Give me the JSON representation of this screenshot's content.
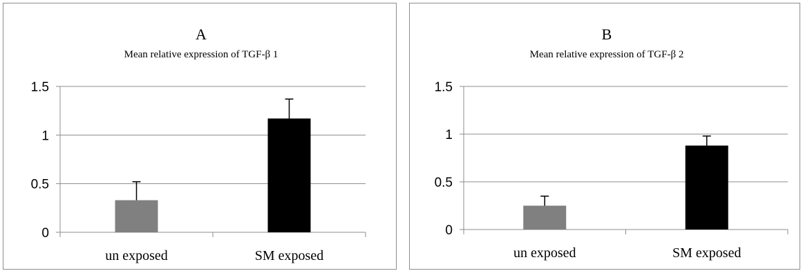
{
  "chart_data": [
    {
      "type": "bar",
      "title": "A",
      "subtitle": "Mean relative expression of TGF-β 1",
      "categories": [
        "un exposed",
        "SM exposed"
      ],
      "values": [
        0.33,
        1.17
      ],
      "errors": [
        0.19,
        0.2
      ],
      "colors": [
        "#808080",
        "#000000"
      ],
      "yticks": [
        "0",
        "0.5",
        "1",
        "1.5"
      ],
      "ylim": [
        0,
        1.5
      ],
      "grid": true,
      "legend": "none"
    },
    {
      "type": "bar",
      "title": "B",
      "subtitle": "Mean relative expression of TGF-β 2",
      "categories": [
        "un exposed",
        "SM exposed"
      ],
      "values": [
        0.25,
        0.88
      ],
      "errors": [
        0.1,
        0.1
      ],
      "colors": [
        "#808080",
        "#000000"
      ],
      "yticks": [
        "0",
        "0.5",
        "1",
        "1.5"
      ],
      "ylim": [
        0,
        1.5
      ],
      "grid": true,
      "legend": "none"
    }
  ]
}
